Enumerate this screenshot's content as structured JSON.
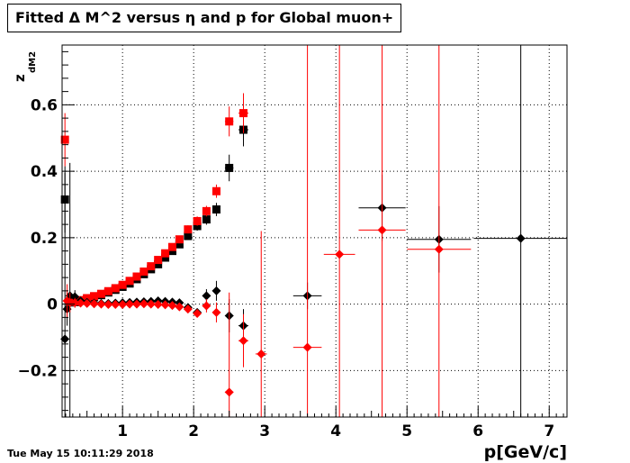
{
  "timestamp": "Tue May 15 10:11:29 2018",
  "chart_data": {
    "type": "scatter",
    "title": "Fitted Δ M^2 versus η and p for Global muon+",
    "xlabel": "p[GeV/c]",
    "ylabel": "z",
    "ylabel_sub": "dM2",
    "xlim": [
      0.15,
      7.25
    ],
    "ylim": [
      -0.34,
      0.78
    ],
    "grid": true,
    "x_ticks": [
      1,
      2,
      3,
      4,
      5,
      6,
      7
    ],
    "x_tick_labels": [
      "1",
      "2",
      "3",
      "4",
      "5",
      "6",
      "7"
    ],
    "y_ticks": [
      -0.2,
      0,
      0.2,
      0.4,
      0.6
    ],
    "y_tick_labels": [
      "−0.2",
      "0",
      "0.2",
      "0.4",
      "0.6"
    ],
    "colors": {
      "black": "#000000",
      "red": "#ff0000"
    },
    "series": [
      {
        "color": "#000000",
        "marker": "square",
        "points": [
          {
            "x": 0.19,
            "y": 0.315,
            "ex": 0.02,
            "ey": 0.1
          },
          {
            "x": 0.26,
            "y": 0.005,
            "ex": 0.02,
            "ey": 0.01
          },
          {
            "x": 0.33,
            "y": 0.006,
            "ex": 0.02,
            "ey": 0.005
          },
          {
            "x": 0.41,
            "y": 0.01,
            "ex": 0.02,
            "ey": 0.004
          },
          {
            "x": 0.5,
            "y": 0.015,
            "ex": 0.02,
            "ey": 0.004
          },
          {
            "x": 0.6,
            "y": 0.021,
            "ex": 0.02,
            "ey": 0.004
          },
          {
            "x": 0.7,
            "y": 0.027,
            "ex": 0.02,
            "ey": 0.004
          },
          {
            "x": 0.8,
            "y": 0.035,
            "ex": 0.02,
            "ey": 0.005
          },
          {
            "x": 0.9,
            "y": 0.043,
            "ex": 0.02,
            "ey": 0.005
          },
          {
            "x": 1.0,
            "y": 0.052,
            "ex": 0.02,
            "ey": 0.005
          },
          {
            "x": 1.1,
            "y": 0.062,
            "ex": 0.02,
            "ey": 0.006
          },
          {
            "x": 1.2,
            "y": 0.075,
            "ex": 0.02,
            "ey": 0.006
          },
          {
            "x": 1.3,
            "y": 0.09,
            "ex": 0.03,
            "ey": 0.007
          },
          {
            "x": 1.4,
            "y": 0.105,
            "ex": 0.03,
            "ey": 0.008
          },
          {
            "x": 1.5,
            "y": 0.12,
            "ex": 0.03,
            "ey": 0.008
          },
          {
            "x": 1.6,
            "y": 0.14,
            "ex": 0.03,
            "ey": 0.009
          },
          {
            "x": 1.7,
            "y": 0.16,
            "ex": 0.03,
            "ey": 0.01
          },
          {
            "x": 1.8,
            "y": 0.18,
            "ex": 0.03,
            "ey": 0.011
          },
          {
            "x": 1.92,
            "y": 0.205,
            "ex": 0.04,
            "ey": 0.012
          },
          {
            "x": 2.05,
            "y": 0.235,
            "ex": 0.04,
            "ey": 0.014
          },
          {
            "x": 2.18,
            "y": 0.255,
            "ex": 0.05,
            "ey": 0.016
          },
          {
            "x": 2.32,
            "y": 0.285,
            "ex": 0.05,
            "ey": 0.02
          },
          {
            "x": 2.5,
            "y": 0.41,
            "ex": 0.06,
            "ey": 0.04
          },
          {
            "x": 2.7,
            "y": 0.525,
            "ex": 0.07,
            "ey": 0.05
          }
        ]
      },
      {
        "color": "#ff0000",
        "marker": "square",
        "points": [
          {
            "x": 0.19,
            "y": 0.495,
            "ex": 0.02,
            "ey": 0.08
          },
          {
            "x": 0.26,
            "y": 0.008,
            "ex": 0.02,
            "ey": 0.01
          },
          {
            "x": 0.33,
            "y": 0.008,
            "ex": 0.02,
            "ey": 0.005
          },
          {
            "x": 0.41,
            "y": 0.012,
            "ex": 0.02,
            "ey": 0.004
          },
          {
            "x": 0.5,
            "y": 0.018,
            "ex": 0.02,
            "ey": 0.004
          },
          {
            "x": 0.6,
            "y": 0.024,
            "ex": 0.02,
            "ey": 0.004
          },
          {
            "x": 0.7,
            "y": 0.031,
            "ex": 0.02,
            "ey": 0.004
          },
          {
            "x": 0.8,
            "y": 0.039,
            "ex": 0.02,
            "ey": 0.005
          },
          {
            "x": 0.9,
            "y": 0.048,
            "ex": 0.02,
            "ey": 0.005
          },
          {
            "x": 1.0,
            "y": 0.058,
            "ex": 0.02,
            "ey": 0.005
          },
          {
            "x": 1.1,
            "y": 0.07,
            "ex": 0.02,
            "ey": 0.006
          },
          {
            "x": 1.2,
            "y": 0.083,
            "ex": 0.02,
            "ey": 0.006
          },
          {
            "x": 1.3,
            "y": 0.098,
            "ex": 0.03,
            "ey": 0.007
          },
          {
            "x": 1.4,
            "y": 0.114,
            "ex": 0.03,
            "ey": 0.008
          },
          {
            "x": 1.5,
            "y": 0.133,
            "ex": 0.03,
            "ey": 0.008
          },
          {
            "x": 1.6,
            "y": 0.153,
            "ex": 0.03,
            "ey": 0.009
          },
          {
            "x": 1.7,
            "y": 0.172,
            "ex": 0.03,
            "ey": 0.01
          },
          {
            "x": 1.8,
            "y": 0.195,
            "ex": 0.03,
            "ey": 0.011
          },
          {
            "x": 1.92,
            "y": 0.225,
            "ex": 0.04,
            "ey": 0.012
          },
          {
            "x": 2.05,
            "y": 0.25,
            "ex": 0.04,
            "ey": 0.014
          },
          {
            "x": 2.18,
            "y": 0.28,
            "ex": 0.05,
            "ey": 0.016
          },
          {
            "x": 2.32,
            "y": 0.34,
            "ex": 0.05,
            "ey": 0.02
          },
          {
            "x": 2.5,
            "y": 0.55,
            "ex": 0.06,
            "ey": 0.045
          },
          {
            "x": 2.7,
            "y": 0.575,
            "ex": 0.07,
            "ey": 0.06
          }
        ]
      },
      {
        "color": "#000000",
        "marker": "diamond",
        "points": [
          {
            "x": 0.19,
            "y": -0.105,
            "ex": 0.02,
            "ey": 0.5
          },
          {
            "x": 0.22,
            "y": -0.015,
            "ex": 0.02,
            "ey": 0.05
          },
          {
            "x": 0.26,
            "y": 0.025,
            "ex": 0.02,
            "ey": 0.4
          },
          {
            "x": 0.33,
            "y": 0.022,
            "ex": 0.02,
            "ey": 0.02
          },
          {
            "x": 0.41,
            "y": 0.01,
            "ex": 0.02,
            "ey": 0.008
          },
          {
            "x": 0.5,
            "y": 0.005,
            "ex": 0.02,
            "ey": 0.005
          },
          {
            "x": 0.6,
            "y": 0.003,
            "ex": 0.02,
            "ey": 0.004
          },
          {
            "x": 0.7,
            "y": 0.002,
            "ex": 0.02,
            "ey": 0.004
          },
          {
            "x": 0.8,
            "y": 0.002,
            "ex": 0.02,
            "ey": 0.004
          },
          {
            "x": 0.9,
            "y": 0.003,
            "ex": 0.02,
            "ey": 0.004
          },
          {
            "x": 1.0,
            "y": 0.004,
            "ex": 0.02,
            "ey": 0.004
          },
          {
            "x": 1.1,
            "y": 0.005,
            "ex": 0.02,
            "ey": 0.004
          },
          {
            "x": 1.2,
            "y": 0.006,
            "ex": 0.02,
            "ey": 0.004
          },
          {
            "x": 1.3,
            "y": 0.007,
            "ex": 0.03,
            "ey": 0.005
          },
          {
            "x": 1.4,
            "y": 0.008,
            "ex": 0.03,
            "ey": 0.005
          },
          {
            "x": 1.5,
            "y": 0.01,
            "ex": 0.03,
            "ey": 0.005
          },
          {
            "x": 1.6,
            "y": 0.008,
            "ex": 0.03,
            "ey": 0.006
          },
          {
            "x": 1.7,
            "y": 0.006,
            "ex": 0.03,
            "ey": 0.006
          },
          {
            "x": 1.8,
            "y": 0.004,
            "ex": 0.03,
            "ey": 0.007
          },
          {
            "x": 1.92,
            "y": -0.01,
            "ex": 0.04,
            "ey": 0.01
          },
          {
            "x": 2.05,
            "y": -0.025,
            "ex": 0.04,
            "ey": 0.012
          },
          {
            "x": 2.18,
            "y": 0.025,
            "ex": 0.05,
            "ey": 0.02
          },
          {
            "x": 2.32,
            "y": 0.04,
            "ex": 0.05,
            "ey": 0.03
          },
          {
            "x": 2.5,
            "y": -0.035,
            "ex": 0.06,
            "ey": 0.05
          },
          {
            "x": 2.7,
            "y": -0.065,
            "ex": 0.07,
            "ey": 0.05
          },
          {
            "x": 3.6,
            "y": 0.025,
            "ex": 0.2,
            "ey": 0.04
          },
          {
            "x": 4.65,
            "y": 0.29,
            "ex": 0.33,
            "ey": 0.1
          },
          {
            "x": 5.45,
            "y": 0.195,
            "ex": 0.45,
            "ey": 0.1
          },
          {
            "x": 6.6,
            "y": 0.198,
            "ex": 0.66,
            "ey": 0.6
          }
        ]
      },
      {
        "color": "#ff0000",
        "marker": "diamond",
        "points": [
          {
            "x": 0.22,
            "y": 0.01,
            "ex": 0.02,
            "ey": 0.05
          },
          {
            "x": 0.26,
            "y": 0.005,
            "ex": 0.02,
            "ey": 0.03
          },
          {
            "x": 0.33,
            "y": 0.004,
            "ex": 0.02,
            "ey": 0.015
          },
          {
            "x": 0.41,
            "y": 0.003,
            "ex": 0.02,
            "ey": 0.006
          },
          {
            "x": 0.5,
            "y": 0.002,
            "ex": 0.02,
            "ey": 0.005
          },
          {
            "x": 0.6,
            "y": 0.001,
            "ex": 0.02,
            "ey": 0.004
          },
          {
            "x": 0.7,
            "y": 0.0,
            "ex": 0.02,
            "ey": 0.004
          },
          {
            "x": 0.8,
            "y": -0.001,
            "ex": 0.02,
            "ey": 0.004
          },
          {
            "x": 0.9,
            "y": -0.001,
            "ex": 0.02,
            "ey": 0.004
          },
          {
            "x": 1.0,
            "y": -0.001,
            "ex": 0.02,
            "ey": 0.004
          },
          {
            "x": 1.1,
            "y": 0.0,
            "ex": 0.02,
            "ey": 0.004
          },
          {
            "x": 1.2,
            "y": 0.0,
            "ex": 0.02,
            "ey": 0.004
          },
          {
            "x": 1.3,
            "y": 0.001,
            "ex": 0.03,
            "ey": 0.005
          },
          {
            "x": 1.4,
            "y": 0.0,
            "ex": 0.03,
            "ey": 0.005
          },
          {
            "x": 1.5,
            "y": -0.001,
            "ex": 0.03,
            "ey": 0.005
          },
          {
            "x": 1.6,
            "y": -0.002,
            "ex": 0.03,
            "ey": 0.006
          },
          {
            "x": 1.7,
            "y": -0.004,
            "ex": 0.03,
            "ey": 0.006
          },
          {
            "x": 1.8,
            "y": -0.008,
            "ex": 0.03,
            "ey": 0.007
          },
          {
            "x": 1.92,
            "y": -0.015,
            "ex": 0.04,
            "ey": 0.01
          },
          {
            "x": 2.05,
            "y": -0.028,
            "ex": 0.04,
            "ey": 0.012
          },
          {
            "x": 2.18,
            "y": -0.005,
            "ex": 0.05,
            "ey": 0.02
          },
          {
            "x": 2.32,
            "y": -0.025,
            "ex": 0.05,
            "ey": 0.03
          },
          {
            "x": 2.5,
            "y": -0.265,
            "ex": 0.06,
            "ey": 0.3
          },
          {
            "x": 2.7,
            "y": -0.11,
            "ex": 0.07,
            "ey": 0.08
          },
          {
            "x": 2.95,
            "y": -0.15,
            "ex": 0.08,
            "ey": 0.37
          },
          {
            "x": 3.6,
            "y": -0.13,
            "ex": 0.2,
            "ey": 1.0
          },
          {
            "x": 4.05,
            "y": 0.15,
            "ex": 0.22,
            "ey": 1.0
          },
          {
            "x": 4.65,
            "y": 0.223,
            "ex": 0.33,
            "ey": 1.0
          },
          {
            "x": 5.45,
            "y": 0.165,
            "ex": 0.45,
            "ey": 1.0
          }
        ]
      }
    ]
  }
}
